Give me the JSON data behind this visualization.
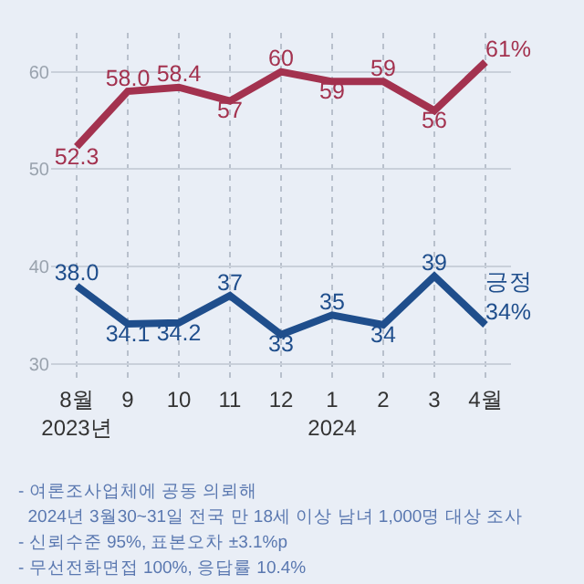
{
  "chart_data": {
    "type": "line",
    "categories": [
      "8월\n2023년",
      "9",
      "10",
      "11",
      "12",
      "1\n2024",
      "2",
      "3",
      "4월"
    ],
    "series": [
      {
        "color": "#a3324f",
        "values": [
          52.3,
          58.0,
          58.4,
          57,
          60,
          59,
          59,
          56,
          61
        ],
        "value_labels": [
          "52.3",
          "58.0",
          "58.4",
          "57",
          "60",
          "59",
          "59",
          "56",
          "61%"
        ]
      },
      {
        "name": "긍정",
        "color": "#1f4e8c",
        "values": [
          38.0,
          34.1,
          34.2,
          37,
          33,
          35,
          34,
          39,
          34
        ],
        "value_labels": [
          "38.0",
          "34.1",
          "34.2",
          "37",
          "33",
          "35",
          "34",
          "39",
          "34%"
        ]
      }
    ],
    "ylim": [
      28,
      64
    ],
    "yticks": [
      30,
      40,
      50,
      60
    ],
    "grid": true,
    "legend": false,
    "marker": "none",
    "line_style": "solid",
    "annotations": [
      "- 여론조사업체에 공동 의뢰해",
      "  2024년 3월30~31일 전국 만 18세 이상 남녀 1,000명 대상 조사",
      "- 신뢰수준 95%, 표본오차 ±3.1%p",
      "- 무선전화면접 100%, 응답률 10.4%"
    ]
  }
}
